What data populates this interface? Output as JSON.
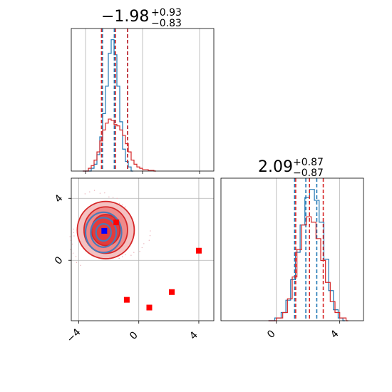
{
  "chart_data": [
    {
      "type": "histogram",
      "panel": "marginal-1",
      "title_main": "−1.98",
      "title_sup": "+0.93",
      "title_sub": "−0.83",
      "xlim": [
        -5,
        5
      ],
      "grid": true,
      "series": [
        {
          "color": "#1f77b4",
          "bins": [
            [
              -4.2,
              0
            ],
            [
              -3.6,
              0.02
            ],
            [
              -3.4,
              0.05
            ],
            [
              -3.2,
              0.12
            ],
            [
              -3.0,
              0.25
            ],
            [
              -2.8,
              0.42
            ],
            [
              -2.6,
              0.62
            ],
            [
              -2.4,
              0.86
            ],
            [
              -2.2,
              0.96
            ],
            [
              -2.0,
              0.85
            ],
            [
              -1.8,
              0.62
            ],
            [
              -1.6,
              0.36
            ],
            [
              -1.4,
              0.16
            ],
            [
              -1.2,
              0.07
            ],
            [
              -1.0,
              0.03
            ],
            [
              -0.8,
              0.0
            ]
          ],
          "quantiles": [
            -2.81,
            -1.98,
            -1.05
          ]
        },
        {
          "color": "#d62728",
          "bins": [
            [
              -4.2,
              0.0
            ],
            [
              -3.8,
              0.02
            ],
            [
              -3.6,
              0.04
            ],
            [
              -3.4,
              0.08
            ],
            [
              -3.2,
              0.14
            ],
            [
              -3.0,
              0.22
            ],
            [
              -2.8,
              0.3
            ],
            [
              -2.6,
              0.35
            ],
            [
              -2.4,
              0.38
            ],
            [
              -2.2,
              0.37
            ],
            [
              -2.0,
              0.34
            ],
            [
              -1.8,
              0.33
            ],
            [
              -1.6,
              0.3
            ],
            [
              -1.4,
              0.26
            ],
            [
              -1.2,
              0.2
            ],
            [
              -1.0,
              0.14
            ],
            [
              -0.8,
              0.08
            ],
            [
              -0.6,
              0.05
            ],
            [
              -0.4,
              0.03
            ],
            [
              -0.2,
              0.02
            ],
            [
              0.0,
              0.01
            ],
            [
              0.4,
              0.005
            ],
            [
              0.8,
              0.0
            ]
          ],
          "quantiles": [
            -2.88,
            -1.9,
            -1.05
          ]
        }
      ]
    },
    {
      "type": "histogram",
      "panel": "marginal-2",
      "title_main": "2.09",
      "title_sup": "+0.87",
      "title_sub": "−0.87",
      "xlim": [
        -3.5,
        5.5
      ],
      "xticks": [
        "0",
        "4"
      ],
      "xtick_values": [
        0,
        4
      ],
      "grid": true,
      "series": [
        {
          "color": "#1f77b4",
          "bins": [
            [
              -0.5,
              0
            ],
            [
              -0.1,
              0.02
            ],
            [
              0.3,
              0.06
            ],
            [
              0.6,
              0.15
            ],
            [
              0.9,
              0.3
            ],
            [
              1.2,
              0.5
            ],
            [
              1.5,
              0.7
            ],
            [
              1.8,
              0.9
            ],
            [
              2.1,
              0.96
            ],
            [
              2.4,
              0.88
            ],
            [
              2.7,
              0.72
            ],
            [
              3.0,
              0.45
            ],
            [
              3.3,
              0.22
            ],
            [
              3.6,
              0.08
            ],
            [
              3.9,
              0.02
            ],
            [
              4.2,
              0.0
            ]
          ],
          "quantiles": [
            1.15,
            1.86,
            2.55
          ]
        },
        {
          "color": "#d62728",
          "bins": [
            [
              -0.5,
              0
            ],
            [
              0.0,
              0.02
            ],
            [
              0.4,
              0.06
            ],
            [
              0.7,
              0.16
            ],
            [
              1.0,
              0.32
            ],
            [
              1.3,
              0.52
            ],
            [
              1.6,
              0.7
            ],
            [
              1.9,
              0.76
            ],
            [
              2.2,
              0.72
            ],
            [
              2.5,
              0.6
            ],
            [
              2.8,
              0.44
            ],
            [
              3.1,
              0.28
            ],
            [
              3.4,
              0.14
            ],
            [
              3.7,
              0.06
            ],
            [
              4.0,
              0.02
            ],
            [
              4.4,
              0.0
            ]
          ],
          "quantiles": [
            1.22,
            2.09,
            2.96
          ]
        }
      ]
    },
    {
      "type": "contour",
      "panel": "joint",
      "xlim": [
        -4.5,
        5
      ],
      "ylim": [
        -3.9,
        5.3
      ],
      "xticks": [
        "−4",
        "0",
        "4"
      ],
      "xtick_values": [
        -4,
        0,
        4
      ],
      "yticks": [
        "0",
        "4"
      ],
      "ytick_values": [
        0,
        4
      ],
      "grid": true,
      "contours": [
        {
          "color": "#d62728",
          "center": [
            -2.2,
            1.95
          ],
          "radii": [
            [
              1.9,
              1.85
            ],
            [
              1.45,
              1.5
            ],
            [
              0.95,
              1.0
            ]
          ]
        },
        {
          "color": "#4a7ab8",
          "center": [
            -2.35,
            1.8
          ],
          "radii": [
            [
              1.2,
              1.3
            ],
            [
              0.85,
              0.95
            ],
            [
              0.5,
              0.55
            ]
          ]
        }
      ],
      "points": [
        {
          "x": -2.3,
          "y": 1.9,
          "color": "#0000ff"
        },
        {
          "x": -1.5,
          "y": 2.45,
          "color": "#ff0000"
        },
        {
          "x": 4.0,
          "y": 0.62,
          "color": "#ff0000"
        },
        {
          "x": 2.2,
          "y": -2.05,
          "color": "#ff0000"
        },
        {
          "x": -0.8,
          "y": -2.55,
          "color": "#ff0000"
        },
        {
          "x": 0.7,
          "y": -3.05,
          "color": "#ff0000"
        }
      ]
    }
  ]
}
